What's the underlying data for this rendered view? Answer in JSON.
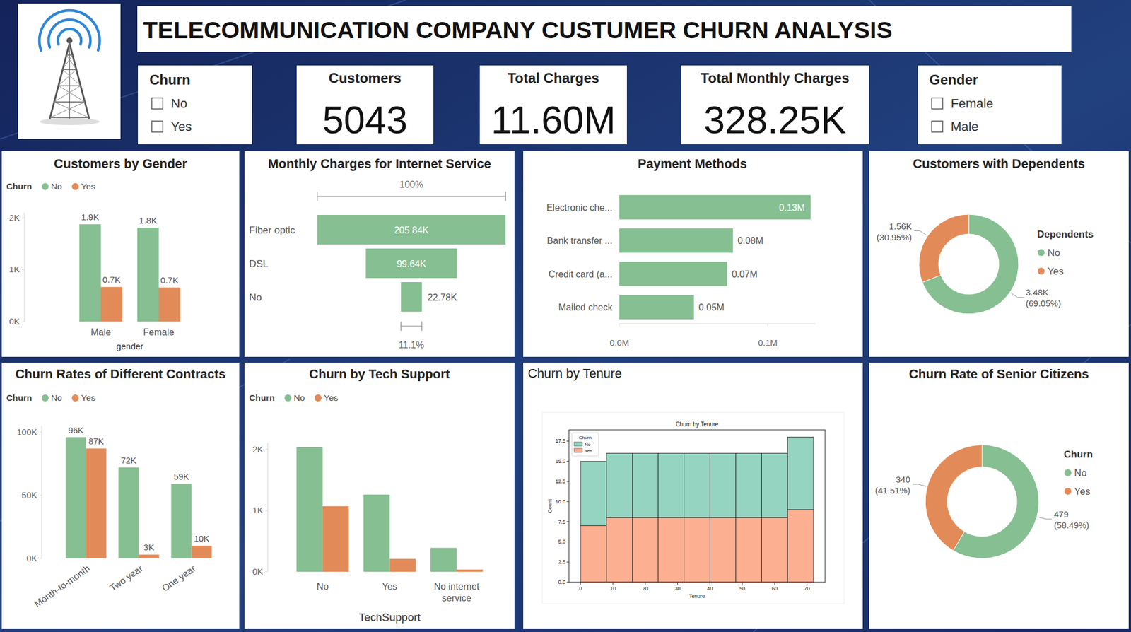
{
  "header": {
    "title": "TELECOMMUNICATION COMPANY CUSTUMER CHURN ANALYSIS"
  },
  "slicers": [
    {
      "title": "Churn",
      "options": [
        "No",
        "Yes"
      ]
    },
    {
      "title": "Gender",
      "options": [
        "Female",
        "Male"
      ]
    }
  ],
  "cards": [
    {
      "title": "Customers",
      "value": 5043
    },
    {
      "title": "Total Charges",
      "value": 11600000,
      "label": "11.60M"
    },
    {
      "title": "Total Monthly Charges",
      "value": 328250,
      "label": "328.25K"
    }
  ],
  "chart_data": [
    {
      "type": "bar",
      "title": "Customers by Gender",
      "legend_title": "Churn",
      "legend": "top-left",
      "xlabel": "gender",
      "categories": [
        "Male",
        "Female"
      ],
      "series": [
        {
          "name": "No",
          "color": "#86bf91",
          "values": [
            1875,
            1810
          ],
          "value_labels": [
            "1.9K",
            "1.8K"
          ]
        },
        {
          "name": "Yes",
          "color": "#e38b58",
          "values": [
            665,
            655
          ],
          "value_labels": [
            "0.7K",
            "0.7K"
          ]
        }
      ],
      "ylim": [
        0,
        2100
      ],
      "yticks": [
        {
          "value": 0,
          "label": "0K"
        },
        {
          "value": 1000,
          "label": "1K"
        },
        {
          "value": 2000,
          "label": "2K"
        }
      ],
      "data_labels": true
    },
    {
      "type": "funnel",
      "title": "Monthly Charges for Internet Service",
      "categories": [
        "Fiber optic",
        "DSL",
        "No"
      ],
      "values": [
        205840,
        99640,
        22780
      ],
      "value_labels": [
        "205.84K",
        "99.64K",
        "22.78K"
      ],
      "color": "#86bf91",
      "annotations": [
        "100%",
        "11.1%"
      ],
      "data_labels": true
    },
    {
      "type": "bar",
      "orientation": "horizontal",
      "title": "Payment Methods",
      "categories": [
        "Electronic che...",
        "Bank transfer ...",
        "Credit card (a...",
        "Mailed check"
      ],
      "values": [
        128900,
        76500,
        72600,
        50250
      ],
      "value_labels": [
        "0.13M",
        "0.08M",
        "0.07M",
        "0.05M"
      ],
      "color": "#86bf91",
      "xlim": [
        0,
        132000
      ],
      "xticks": [
        {
          "value": 0,
          "label": "0.0M"
        },
        {
          "value": 100000,
          "label": "0.1M"
        }
      ],
      "data_labels": true
    },
    {
      "type": "donut",
      "title": "Customers with Dependents",
      "legend_title": "Dependents",
      "legend": "right",
      "categories": [
        "No",
        "Yes"
      ],
      "values": [
        3480,
        1560
      ],
      "value_labels": [
        "3.48K (69.05%)",
        "1.56K (30.95%)"
      ],
      "colors": [
        "#86bf91",
        "#e38b58"
      ],
      "data_labels": true
    },
    {
      "type": "bar",
      "title": "Churn Rates of Different Contracts",
      "legend_title": "Churn",
      "legend": "top-left",
      "categories": [
        "Month-to-month",
        "Two year",
        "One year"
      ],
      "series": [
        {
          "name": "No",
          "color": "#86bf91",
          "values": [
            96000,
            72000,
            59000
          ],
          "value_labels": [
            "96K",
            "72K",
            "59K"
          ]
        },
        {
          "name": "Yes",
          "color": "#e38b58",
          "values": [
            87000,
            3000,
            10000
          ],
          "value_labels": [
            "87K",
            "3K",
            "10K"
          ]
        }
      ],
      "ylim": [
        0,
        105000
      ],
      "yticks": [
        {
          "value": 0,
          "label": "0K"
        },
        {
          "value": 50000,
          "label": "50K"
        },
        {
          "value": 100000,
          "label": "100K"
        }
      ],
      "data_labels": true
    },
    {
      "type": "bar",
      "title": "Churn by Tech Support",
      "legend_title": "Churn",
      "legend": "top-left",
      "xlabel": "TechSupport",
      "categories": [
        "No",
        "Yes",
        "No internet service"
      ],
      "series": [
        {
          "name": "No",
          "color": "#86bf91",
          "values": [
            2035,
            1260,
            390
          ]
        },
        {
          "name": "Yes",
          "color": "#e38b58",
          "values": [
            1070,
            210,
            35
          ]
        }
      ],
      "ylim": [
        0,
        2100
      ],
      "yticks": [
        {
          "value": 0,
          "label": "0K"
        },
        {
          "value": 1000,
          "label": "1K"
        },
        {
          "value": 2000,
          "label": "2K"
        }
      ],
      "data_labels": false
    },
    {
      "type": "histogram",
      "title": "Churn by Tenure",
      "plot_title": "Churn by Tenure",
      "xlabel": "Tenure",
      "ylabel": "Count",
      "legend_title": "Churn",
      "legend": "upper-left",
      "stacked": true,
      "bins": [
        0,
        8,
        16,
        24,
        32,
        40,
        48,
        56,
        64,
        72
      ],
      "series": [
        {
          "name": "No",
          "color": "#94d4c0",
          "values": [
            8,
            8,
            8,
            8,
            8,
            8,
            8,
            8,
            9
          ]
        },
        {
          "name": "Yes",
          "color": "#fdaf91",
          "values": [
            7,
            8,
            8,
            8,
            8,
            8,
            8,
            8,
            9
          ]
        }
      ],
      "xlim": [
        -3.6,
        75.6
      ],
      "xticks": [
        0,
        10,
        20,
        30,
        40,
        50,
        60,
        70
      ],
      "ylim": [
        0,
        18.9
      ],
      "yticks": [
        {
          "value": 0,
          "label": "0.0"
        },
        2.5,
        {
          "value": 5,
          "label": "5.0"
        },
        7.5,
        {
          "value": 10,
          "label": "10.0"
        },
        12.5,
        {
          "value": 15,
          "label": "15.0"
        },
        17.5
      ]
    },
    {
      "type": "donut",
      "title": "Churn Rate of Senior Citizens",
      "legend_title": "Churn",
      "legend": "right",
      "categories": [
        "No",
        "Yes"
      ],
      "values": [
        479,
        340
      ],
      "value_labels": [
        "479 (58.49%)",
        "340 (41.51%)"
      ],
      "colors": [
        "#86bf91",
        "#e38b58"
      ],
      "data_labels": true
    }
  ]
}
